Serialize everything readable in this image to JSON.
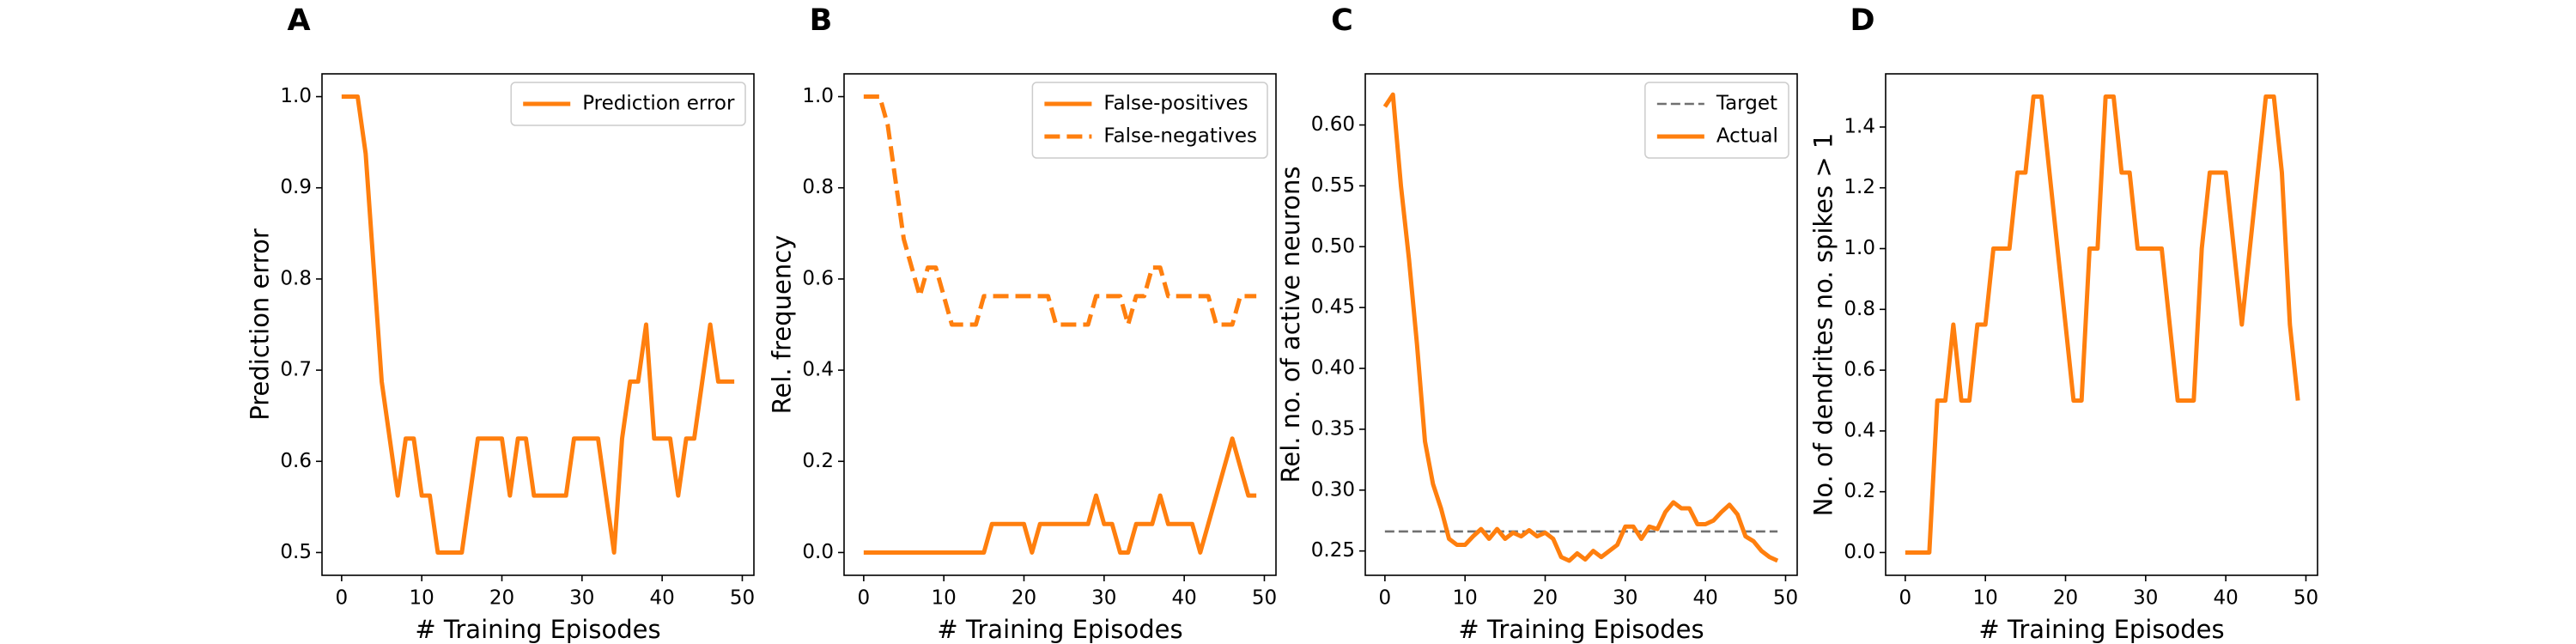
{
  "chart_data": [
    {
      "type": "line",
      "panel_label": "A",
      "xlabel": "# Training Episodes",
      "ylabel": "Prediction error",
      "x": [
        0,
        1,
        2,
        3,
        4,
        5,
        6,
        7,
        8,
        9,
        10,
        11,
        12,
        13,
        14,
        15,
        16,
        17,
        18,
        19,
        20,
        21,
        22,
        23,
        24,
        25,
        26,
        27,
        28,
        29,
        30,
        31,
        32,
        33,
        34,
        35,
        36,
        37,
        38,
        39,
        40,
        41,
        42,
        43,
        44,
        45,
        46,
        47,
        48,
        49
      ],
      "series": [
        {
          "name": "Prediction error",
          "color": "#ff7f0e",
          "dashed": false,
          "values": [
            1.0,
            1.0,
            1.0,
            0.9375,
            0.8125,
            0.6875,
            0.625,
            0.5625,
            0.625,
            0.625,
            0.5625,
            0.5625,
            0.5,
            0.5,
            0.5,
            0.5,
            0.5625,
            0.625,
            0.625,
            0.625,
            0.625,
            0.5625,
            0.625,
            0.625,
            0.5625,
            0.5625,
            0.5625,
            0.5625,
            0.5625,
            0.625,
            0.625,
            0.625,
            0.625,
            0.5625,
            0.5,
            0.625,
            0.6875,
            0.6875,
            0.75,
            0.625,
            0.625,
            0.625,
            0.5625,
            0.625,
            0.625,
            0.6875,
            0.75,
            0.6875,
            0.6875,
            0.6875
          ]
        }
      ],
      "xlim": [
        -2.45,
        51.45
      ],
      "xticks": [
        0,
        10,
        20,
        30,
        40,
        50
      ],
      "ylim": [
        0.475,
        1.025
      ],
      "yticks": [
        0.5,
        0.6,
        0.7,
        0.8,
        0.9,
        {
          "value": 1.0,
          "label": "1.0"
        }
      ],
      "legend": "upper right"
    },
    {
      "type": "line",
      "panel_label": "B",
      "xlabel": "# Training Episodes",
      "ylabel": "Rel. frequency",
      "x": [
        0,
        1,
        2,
        3,
        4,
        5,
        6,
        7,
        8,
        9,
        10,
        11,
        12,
        13,
        14,
        15,
        16,
        17,
        18,
        19,
        20,
        21,
        22,
        23,
        24,
        25,
        26,
        27,
        28,
        29,
        30,
        31,
        32,
        33,
        34,
        35,
        36,
        37,
        38,
        39,
        40,
        41,
        42,
        43,
        44,
        45,
        46,
        47,
        48,
        49
      ],
      "series": [
        {
          "name": "False-positives",
          "color": "#ff7f0e",
          "dashed": false,
          "values": [
            0,
            0,
            0,
            0,
            0,
            0,
            0,
            0,
            0,
            0,
            0,
            0,
            0,
            0,
            0,
            0,
            0.0625,
            0.0625,
            0.0625,
            0.0625,
            0.0625,
            0,
            0.0625,
            0.0625,
            0.0625,
            0.0625,
            0.0625,
            0.0625,
            0.0625,
            0.125,
            0.0625,
            0.0625,
            0,
            0,
            0.0625,
            0.0625,
            0.0625,
            0.125,
            0.0625,
            0.0625,
            0.0625,
            0.0625,
            0,
            0.0625,
            0.125,
            0.1875,
            0.25,
            0.1875,
            0.125,
            0.125
          ]
        },
        {
          "name": "False-negatives",
          "color": "#ff7f0e",
          "dashed": true,
          "values": [
            1.0,
            1.0,
            1.0,
            0.9375,
            0.8125,
            0.6875,
            0.625,
            0.5625,
            0.625,
            0.625,
            0.5625,
            0.5,
            0.5,
            0.5,
            0.5,
            0.5625,
            0.5625,
            0.5625,
            0.5625,
            0.5625,
            0.5625,
            0.5625,
            0.5625,
            0.5625,
            0.5,
            0.5,
            0.5,
            0.5,
            0.5,
            0.5625,
            0.5625,
            0.5625,
            0.5625,
            0.5,
            0.5625,
            0.5625,
            0.625,
            0.625,
            0.5625,
            0.5625,
            0.5625,
            0.5625,
            0.5625,
            0.5625,
            0.5,
            0.5,
            0.5,
            0.5625,
            0.5625,
            0.5625
          ]
        }
      ],
      "xlim": [
        -2.45,
        51.45
      ],
      "xticks": [
        0,
        10,
        20,
        30,
        40,
        50
      ],
      "ylim": [
        -0.05,
        1.05
      ],
      "yticks": [
        {
          "value": 0,
          "label": "0.0"
        },
        0.2,
        0.4,
        0.6,
        0.8,
        {
          "value": 1.0,
          "label": "1.0"
        }
      ],
      "legend": "upper right"
    },
    {
      "type": "line",
      "panel_label": "C",
      "xlabel": "# Training Episodes",
      "ylabel": "Rel. no. of active neurons",
      "x": [
        0,
        1,
        2,
        3,
        4,
        5,
        6,
        7,
        8,
        9,
        10,
        11,
        12,
        13,
        14,
        15,
        16,
        17,
        18,
        19,
        20,
        21,
        22,
        23,
        24,
        25,
        26,
        27,
        28,
        29,
        30,
        31,
        32,
        33,
        34,
        35,
        36,
        37,
        38,
        39,
        40,
        41,
        42,
        43,
        44,
        45,
        46,
        47,
        48,
        49
      ],
      "series": [
        {
          "name": "Target",
          "color": "#707070",
          "dashed": true,
          "thin": true,
          "values": [
            0.266,
            0.266,
            0.266,
            0.266,
            0.266,
            0.266,
            0.266,
            0.266,
            0.266,
            0.266,
            0.266,
            0.266,
            0.266,
            0.266,
            0.266,
            0.266,
            0.266,
            0.266,
            0.266,
            0.266,
            0.266,
            0.266,
            0.266,
            0.266,
            0.266,
            0.266,
            0.266,
            0.266,
            0.266,
            0.266,
            0.266,
            0.266,
            0.266,
            0.266,
            0.266,
            0.266,
            0.266,
            0.266,
            0.266,
            0.266,
            0.266,
            0.266,
            0.266,
            0.266,
            0.266,
            0.266,
            0.266,
            0.266,
            0.266,
            0.266
          ]
        },
        {
          "name": "Actual",
          "color": "#ff7f0e",
          "dashed": false,
          "values": [
            0.615,
            0.625,
            0.55,
            0.49,
            0.42,
            0.34,
            0.305,
            0.285,
            0.26,
            0.255,
            0.255,
            0.262,
            0.268,
            0.26,
            0.268,
            0.26,
            0.265,
            0.262,
            0.267,
            0.262,
            0.265,
            0.26,
            0.245,
            0.242,
            0.248,
            0.243,
            0.25,
            0.245,
            0.25,
            0.255,
            0.27,
            0.27,
            0.26,
            0.27,
            0.268,
            0.282,
            0.29,
            0.285,
            0.285,
            0.272,
            0.272,
            0.275,
            0.282,
            0.288,
            0.28,
            0.262,
            0.258,
            0.25,
            0.245,
            0.242
          ]
        }
      ],
      "xlim": [
        -2.45,
        51.45
      ],
      "xticks": [
        0,
        10,
        20,
        30,
        40,
        50
      ],
      "ylim": [
        0.23,
        0.642
      ],
      "yticks": [
        0.25,
        {
          "value": 0.3,
          "label": "0.30"
        },
        0.35,
        {
          "value": 0.4,
          "label": "0.40"
        },
        0.45,
        {
          "value": 0.5,
          "label": "0.50"
        },
        0.55,
        {
          "value": 0.6,
          "label": "0.60"
        }
      ],
      "legend": "upper right"
    },
    {
      "type": "line",
      "panel_label": "D",
      "xlabel": "# Training Episodes",
      "ylabel": "No. of dendrites no. spikes > 1",
      "x": [
        0,
        1,
        2,
        3,
        4,
        5,
        6,
        7,
        8,
        9,
        10,
        11,
        12,
        13,
        14,
        15,
        16,
        17,
        18,
        19,
        20,
        21,
        22,
        23,
        24,
        25,
        26,
        27,
        28,
        29,
        30,
        31,
        32,
        33,
        34,
        35,
        36,
        37,
        38,
        39,
        40,
        41,
        42,
        43,
        44,
        45,
        46,
        47,
        48,
        49
      ],
      "series": [
        {
          "color": "#ff7f0e",
          "dashed": false,
          "values": [
            0,
            0,
            0,
            0,
            0.5,
            0.5,
            0.75,
            0.5,
            0.5,
            0.75,
            0.75,
            1.0,
            1.0,
            1.0,
            1.25,
            1.25,
            1.5,
            1.5,
            1.25,
            1.0,
            0.75,
            0.5,
            0.5,
            1.0,
            1.0,
            1.5,
            1.5,
            1.25,
            1.25,
            1.0,
            1.0,
            1.0,
            1.0,
            0.75,
            0.5,
            0.5,
            0.5,
            1.0,
            1.25,
            1.25,
            1.25,
            1.0,
            0.75,
            1.0,
            1.25,
            1.5,
            1.5,
            1.25,
            0.75,
            0.5
          ]
        }
      ],
      "xlim": [
        -2.45,
        51.45
      ],
      "xticks": [
        0,
        10,
        20,
        30,
        40,
        50
      ],
      "ylim": [
        -0.075,
        1.575
      ],
      "yticks": [
        {
          "value": 0,
          "label": "0.0"
        },
        0.2,
        0.4,
        0.6,
        0.8,
        {
          "value": 1.0,
          "label": "1.0"
        },
        1.2,
        1.4
      ]
    }
  ]
}
